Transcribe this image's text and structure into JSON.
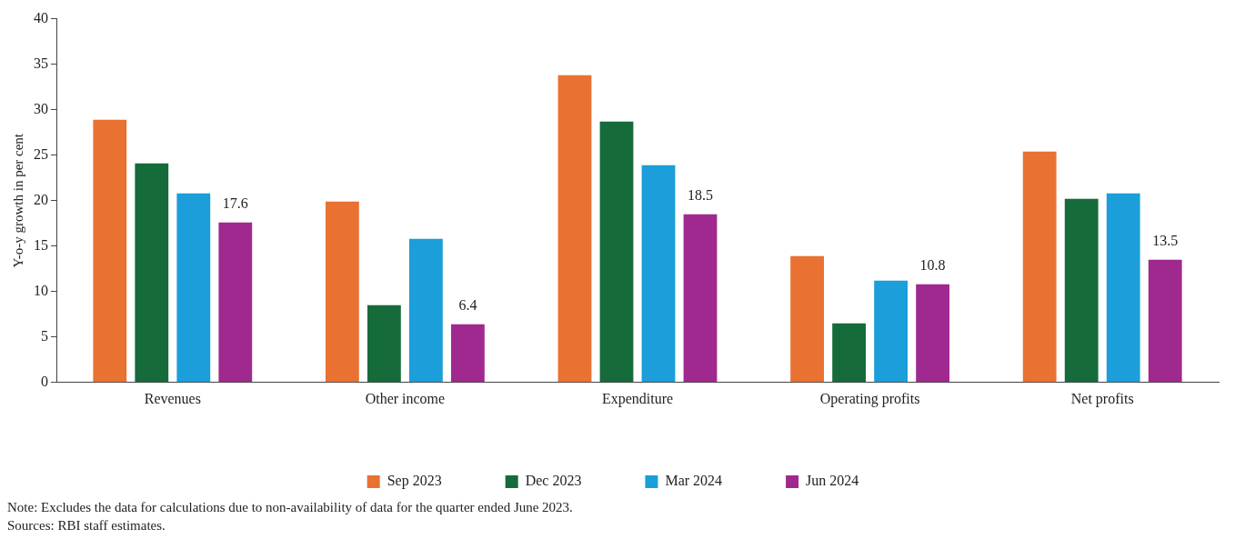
{
  "chart_data": {
    "type": "bar",
    "ylabel": "Y-o-y growth in per cent",
    "categories": [
      "Revenues",
      "Other income",
      "Expenditure",
      "Operating profits",
      "Net profits"
    ],
    "series": [
      {
        "name": "Sep 2023",
        "color": "#e97132",
        "values": [
          28.9,
          19.9,
          33.8,
          13.9,
          25.4
        ]
      },
      {
        "name": "Dec 2023",
        "color": "#156b3a",
        "values": [
          24.1,
          8.5,
          28.7,
          6.5,
          20.2
        ]
      },
      {
        "name": "Mar 2024",
        "color": "#1b9ed9",
        "values": [
          20.8,
          15.8,
          23.9,
          11.2,
          20.8
        ]
      },
      {
        "name": "Jun 2024",
        "color": "#a0298f",
        "values": [
          17.6,
          6.4,
          18.5,
          10.8,
          13.5
        ],
        "value_labels": [
          "17.6",
          "6.4",
          "18.5",
          "10.8",
          "13.5"
        ]
      }
    ],
    "ylim": [
      0,
      40
    ],
    "yticks": [
      0,
      5,
      10,
      15,
      20,
      25,
      30,
      35,
      40
    ],
    "grid": false,
    "legend": "bottom",
    "annotations": [
      "Note: Excludes the data for calculations due to non-availability of data for the quarter ended June 2023.",
      "Sources: RBI staff estimates."
    ]
  }
}
